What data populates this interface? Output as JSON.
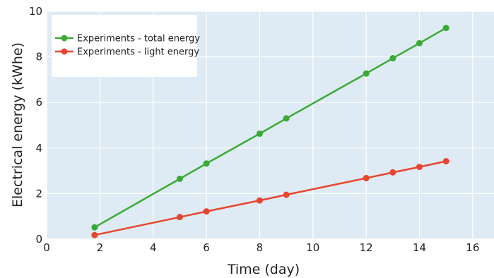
{
  "chart_data": {
    "type": "line",
    "xlabel": "Time (day)",
    "ylabel": "Electrical energy (kWhe)",
    "xlim": [
      0,
      16.8
    ],
    "ylim": [
      0,
      10
    ],
    "xticks": [
      0,
      2,
      4,
      6,
      8,
      10,
      12,
      14,
      16
    ],
    "yticks": [
      0,
      2,
      4,
      6,
      8,
      10
    ],
    "grid": true,
    "plot_background": "#deebf4",
    "legend_position": "top-left",
    "series": [
      {
        "name": "Experiments - total energy",
        "color": "#3aaa35",
        "x": [
          1.8,
          5,
          6,
          8,
          9,
          12,
          13,
          14,
          15
        ],
        "y": [
          0.52,
          2.65,
          3.32,
          4.63,
          5.3,
          7.27,
          7.94,
          8.6,
          9.27
        ]
      },
      {
        "name": "Experiments - light energy",
        "color": "#e8452f",
        "x": [
          1.8,
          5,
          6,
          8,
          9,
          12,
          13,
          14,
          15
        ],
        "y": [
          0.18,
          0.97,
          1.22,
          1.7,
          1.95,
          2.68,
          2.93,
          3.17,
          3.42
        ]
      }
    ]
  }
}
